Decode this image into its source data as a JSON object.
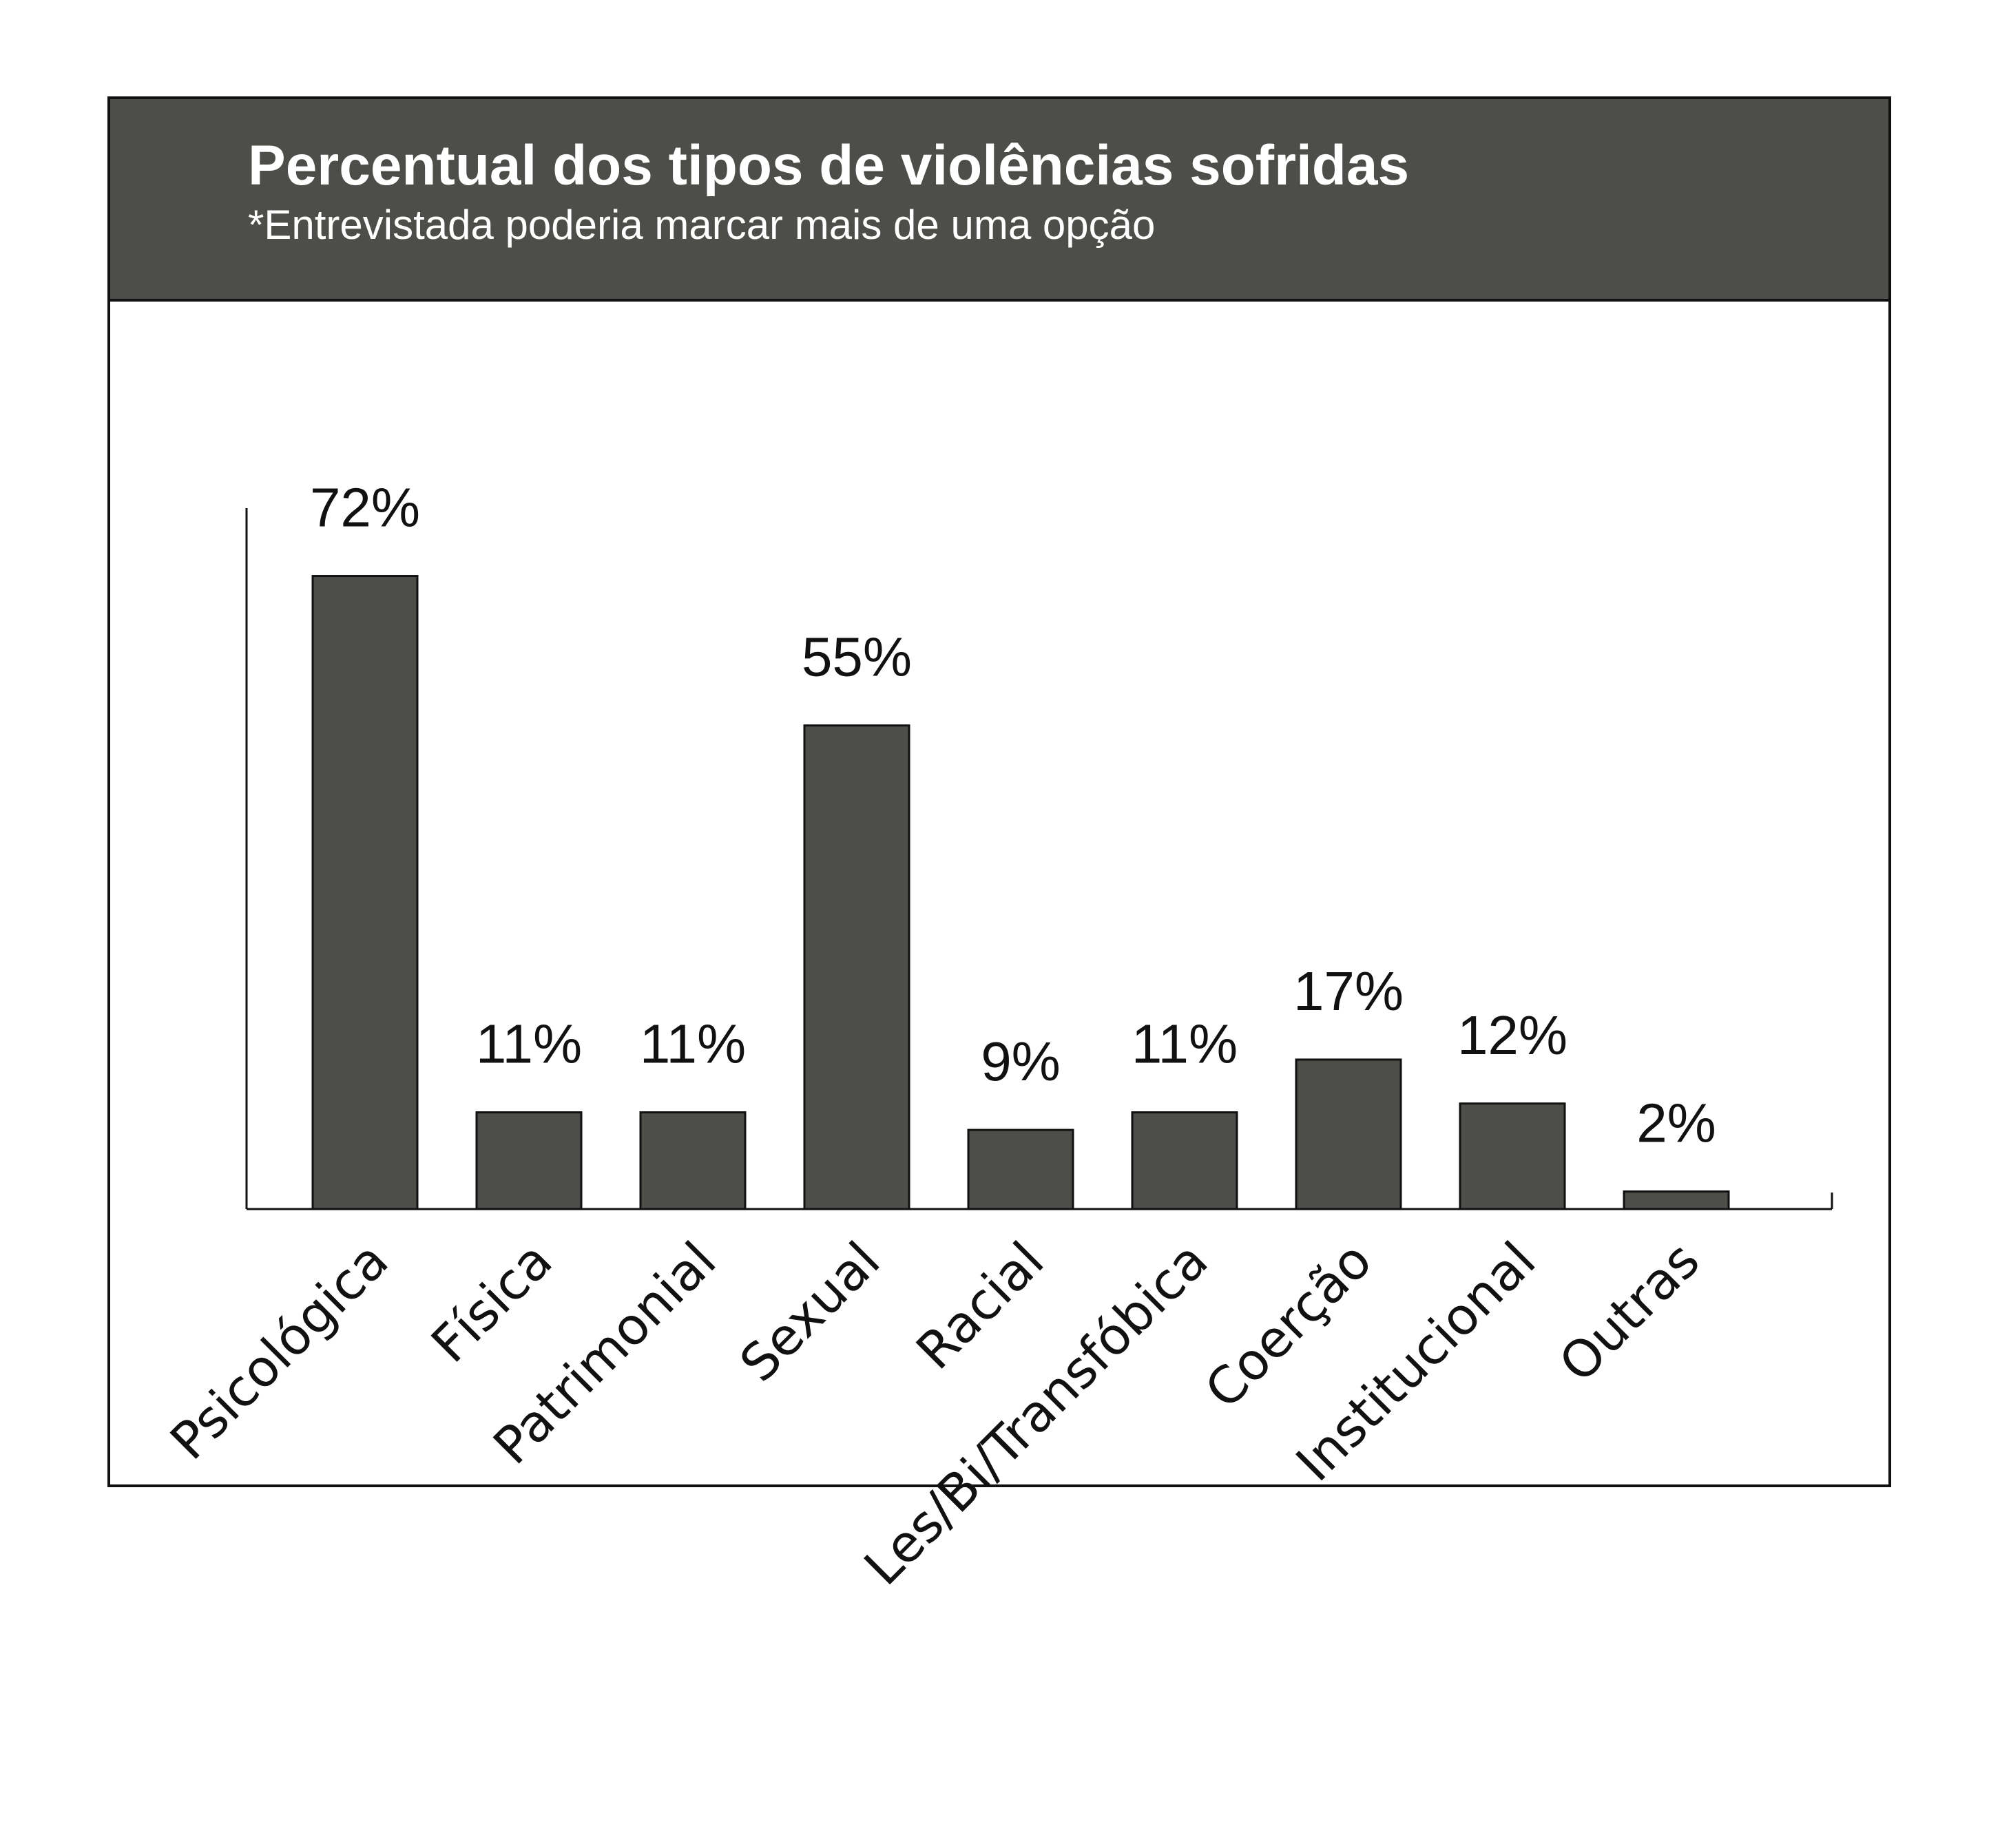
{
  "chart_data": {
    "type": "bar",
    "title": "Percentual dos tipos de violências sofridas",
    "subtitle": "*Entrevistada poderia marcar mais de uma opção",
    "categories": [
      "Psicológica",
      "Física",
      "Patrimonial",
      "Sexual",
      "Racial",
      "Les/Bi/Transfóbica",
      "Coerção",
      "Institucional",
      "Outras"
    ],
    "values": [
      72,
      11,
      11,
      55,
      9,
      11,
      17,
      12,
      2
    ],
    "value_labels": [
      "72%",
      "11%",
      "11%",
      "55%",
      "9%",
      "11%",
      "17%",
      "12%",
      "2%"
    ],
    "ylim": [
      0,
      80
    ],
    "grid": false,
    "legend": "none",
    "bar_color": "#4d4e4a"
  }
}
